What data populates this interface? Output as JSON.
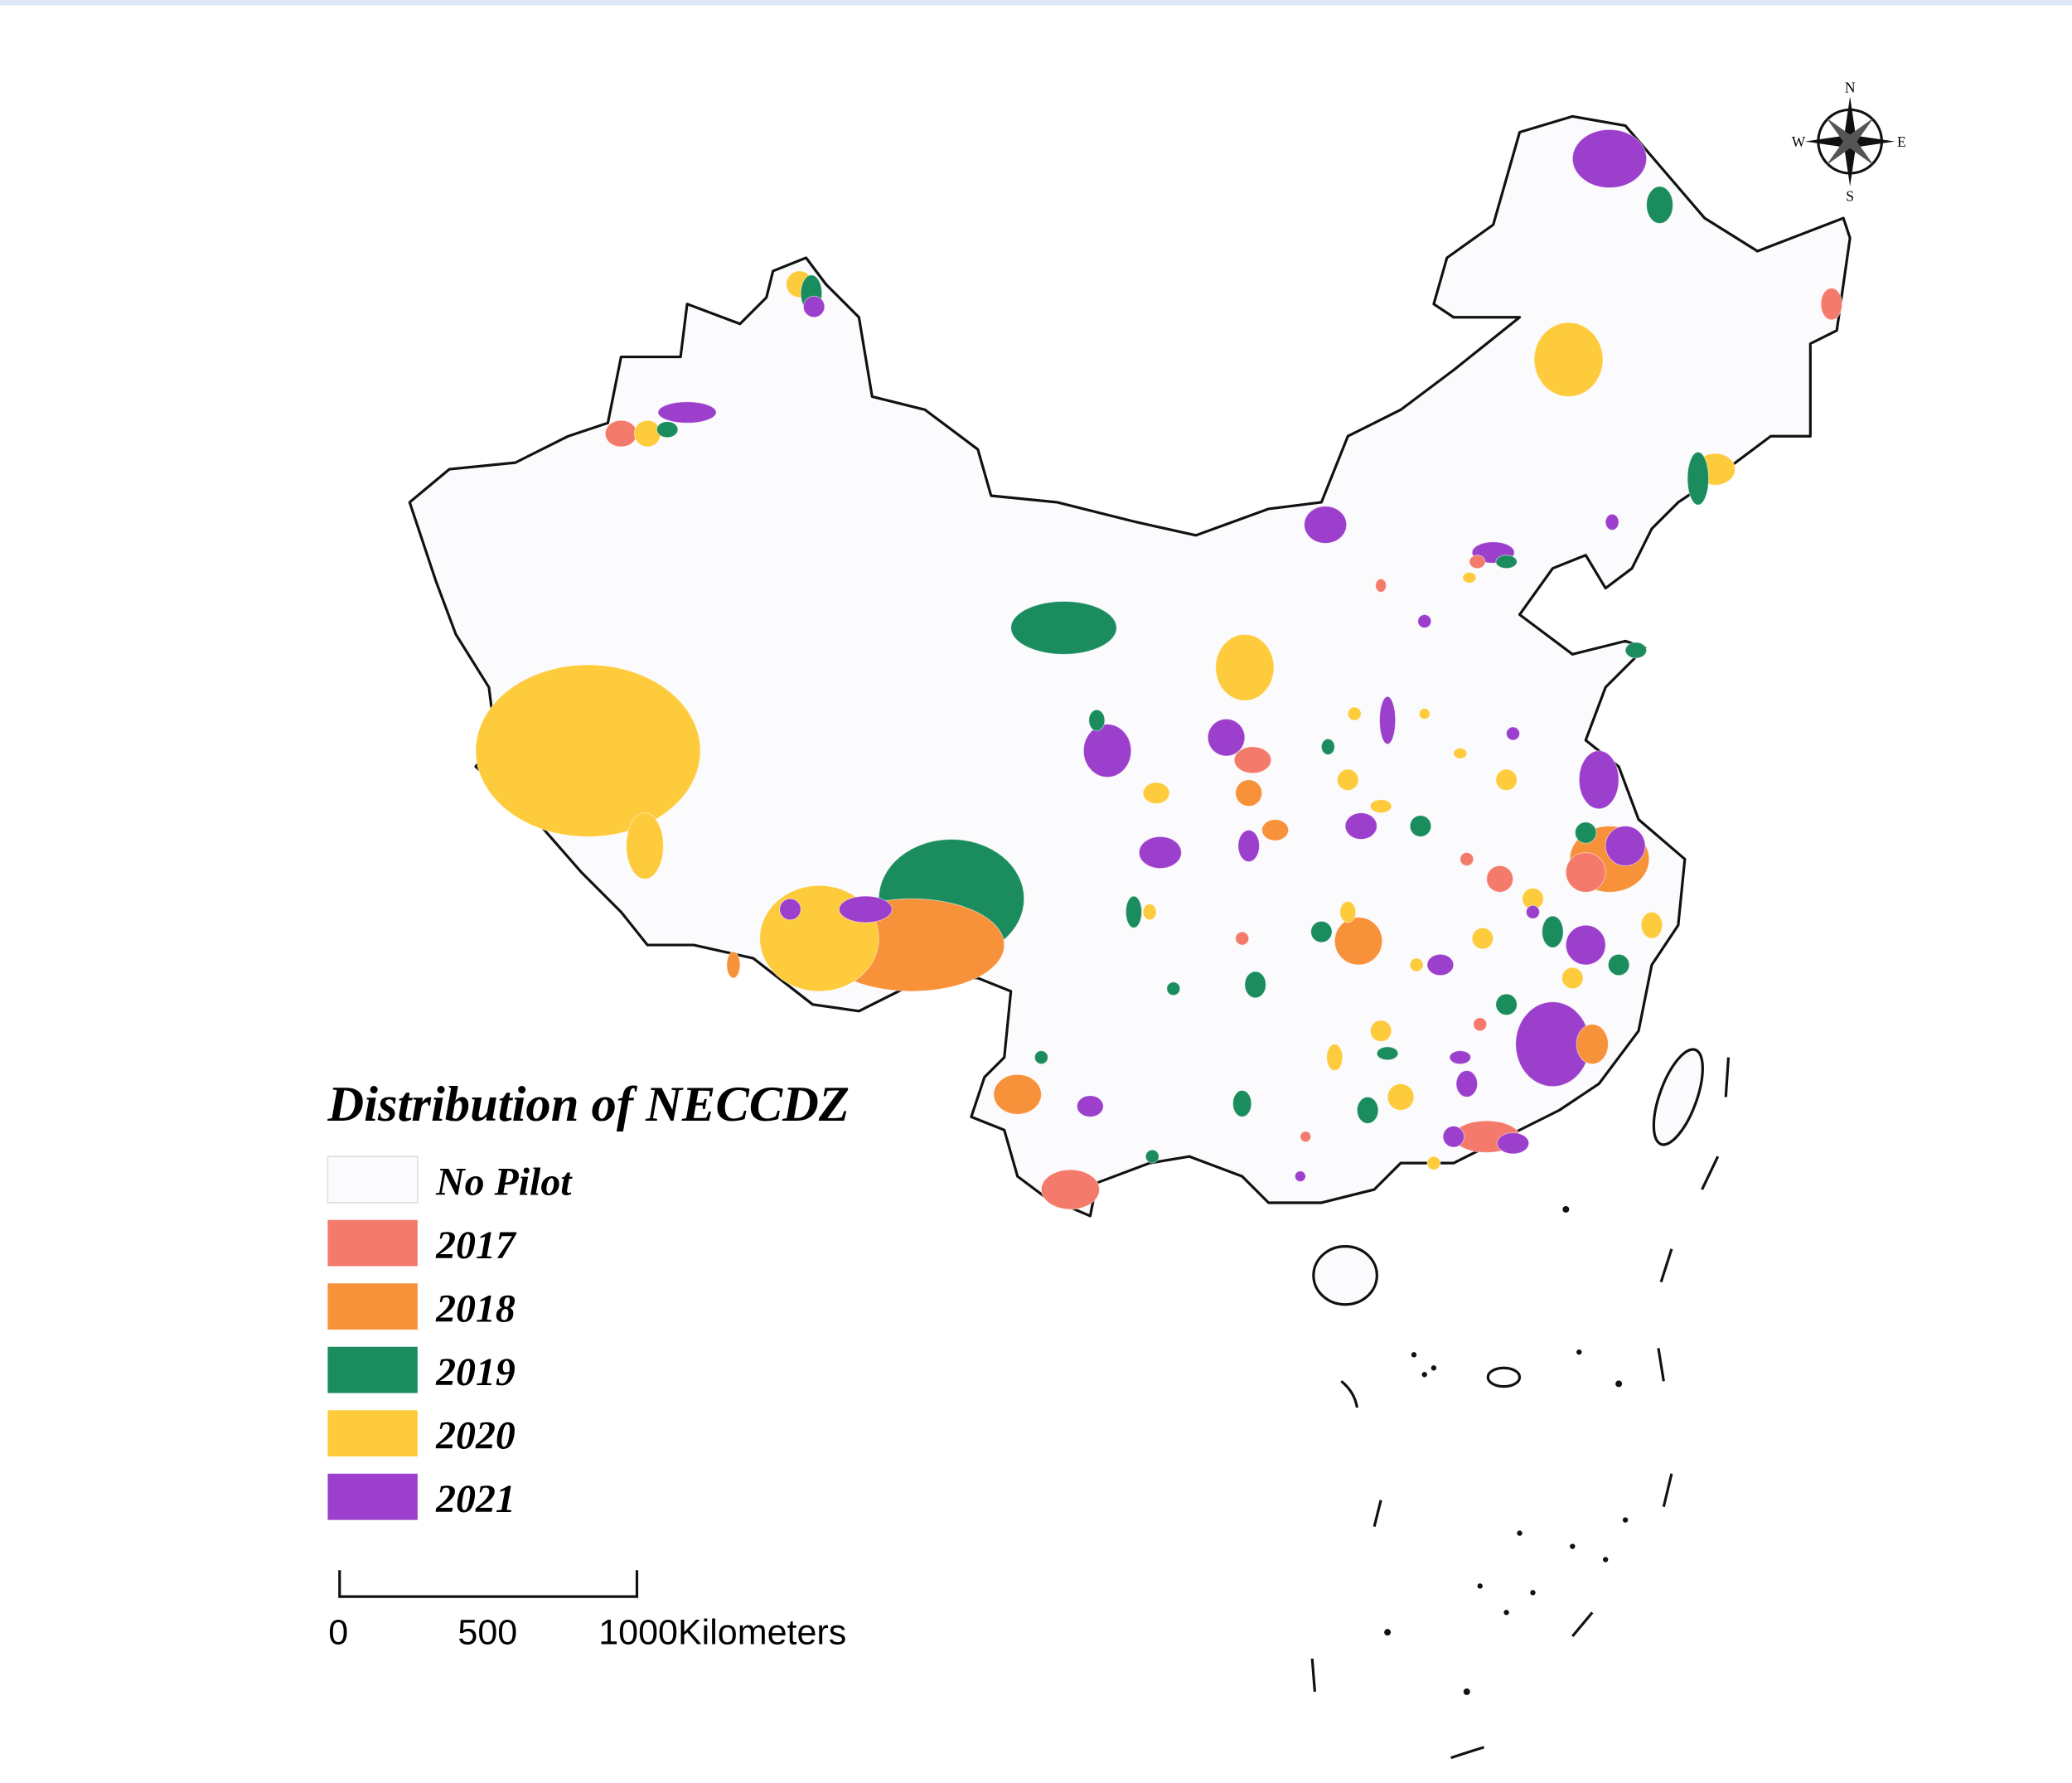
{
  "title": "Distribution of NECCDZ",
  "legend": [
    {
      "label": "No Pilot",
      "color": "#fbfafc"
    },
    {
      "label": "2017",
      "color": "#f47a6b"
    },
    {
      "label": "2018",
      "color": "#f7913a"
    },
    {
      "label": "2019",
      "color": "#1a8c5e"
    },
    {
      "label": "2020",
      "color": "#fdcb3b"
    },
    {
      "label": "2021",
      "color": "#9b3fcc"
    }
  ],
  "scale_bar": {
    "labels": [
      "0",
      "500",
      "1000Kilometers"
    ]
  },
  "compass": {
    "north": "N",
    "south": "S",
    "west": "W",
    "east": "E"
  }
}
